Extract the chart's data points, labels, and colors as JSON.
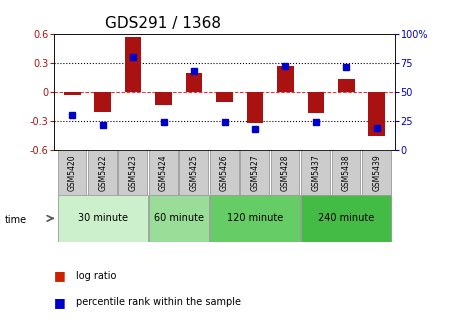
{
  "title": "GDS291 / 1368",
  "samples": [
    "GSM5420",
    "GSM5422",
    "GSM5423",
    "GSM5424",
    "GSM5425",
    "GSM5426",
    "GSM5427",
    "GSM5428",
    "GSM5437",
    "GSM5438",
    "GSM5439"
  ],
  "log_ratio": [
    -0.03,
    -0.2,
    0.57,
    -0.13,
    0.2,
    -0.1,
    -0.32,
    0.27,
    -0.22,
    0.13,
    -0.45
  ],
  "percentile": [
    30,
    22,
    80,
    24,
    68,
    24,
    18,
    72,
    24,
    71,
    19
  ],
  "ylim_left": [
    -0.6,
    0.6
  ],
  "ylim_right": [
    0,
    100
  ],
  "yticks_left": [
    -0.6,
    -0.3,
    0.0,
    0.3,
    0.6
  ],
  "ytick_labels_left": [
    "-0.6",
    "-0.3",
    "0",
    "0.3",
    "0.6"
  ],
  "yticks_right": [
    0,
    25,
    50,
    75,
    100
  ],
  "ytick_labels_right": [
    "0",
    "25",
    "50",
    "75",
    "100%"
  ],
  "bar_color": "#aa1111",
  "square_color": "#0000cc",
  "time_groups": [
    {
      "label": "30 minute",
      "samples_idx": [
        0,
        1,
        2
      ],
      "color": "#ccf0cc"
    },
    {
      "label": "60 minute",
      "samples_idx": [
        3,
        4
      ],
      "color": "#99dd99"
    },
    {
      "label": "120 minute",
      "samples_idx": [
        5,
        6,
        7
      ],
      "color": "#66cc66"
    },
    {
      "label": "240 minute",
      "samples_idx": [
        8,
        9,
        10
      ],
      "color": "#44bb44"
    }
  ],
  "legend_log_ratio_color": "#cc2200",
  "legend_percentile_color": "#0000cc",
  "axis_bg": "#ffffff",
  "tick_label_bg": "#cccccc",
  "title_fontsize": 11,
  "tick_fontsize": 7,
  "bar_width": 0.55
}
